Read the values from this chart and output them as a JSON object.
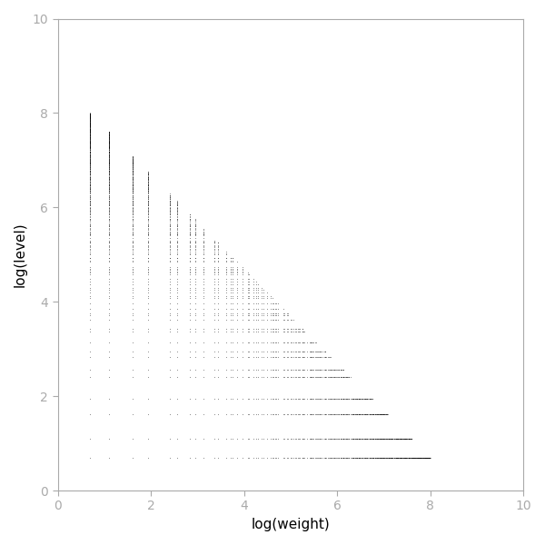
{
  "xlabel": "log(weight)",
  "ylabel": "log(level)",
  "xlim": [
    0,
    10
  ],
  "ylim": [
    0,
    10
  ],
  "xticks": [
    0,
    2,
    4,
    6,
    8,
    10
  ],
  "yticks": [
    0,
    2,
    4,
    6,
    8,
    10
  ],
  "N_max": 6000,
  "point_size": 0.8,
  "point_color": "black",
  "background_color": "white",
  "tick_color": "#aaaaaa",
  "axis_linewidth": 0.8,
  "figsize": [
    6.0,
    6.0
  ],
  "dpi": 100
}
